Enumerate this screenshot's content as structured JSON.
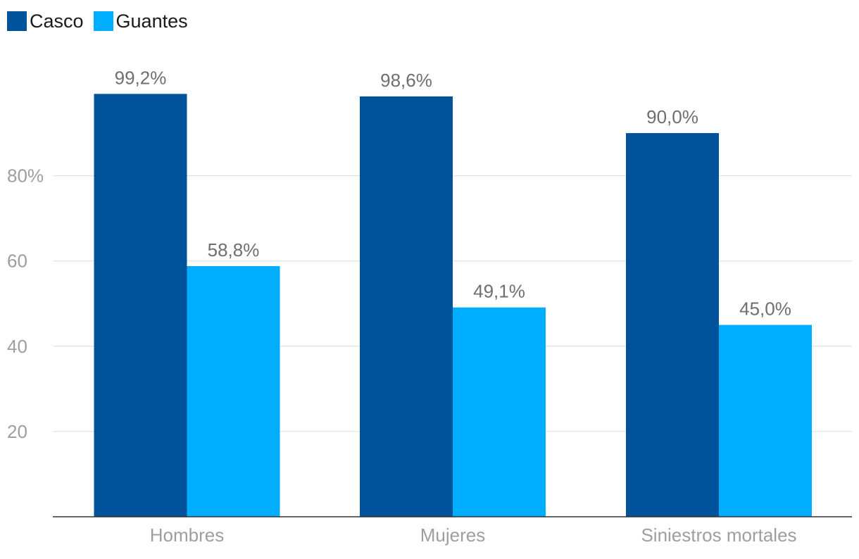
{
  "chart_data": {
    "type": "bar",
    "categories": [
      "Hombres",
      "Mujeres",
      "Siniestros mortales"
    ],
    "series": [
      {
        "name": "Casco",
        "values": [
          99.2,
          98.6,
          90.0
        ],
        "labels": [
          "99,2%",
          "98,6%",
          "90,0%"
        ],
        "color": "#00529b"
      },
      {
        "name": "Guantes",
        "values": [
          58.8,
          49.1,
          45.0
        ],
        "labels": [
          "58,8%",
          "49,1%",
          "45,0%"
        ],
        "color": "#00adff"
      }
    ],
    "y_ticks": [
      {
        "value": 20,
        "label": "20"
      },
      {
        "value": 40,
        "label": "40"
      },
      {
        "value": 60,
        "label": "60"
      },
      {
        "value": 80,
        "label": "80%"
      }
    ],
    "ylim": [
      0,
      100
    ],
    "grid": true,
    "legend_position": "top-left"
  }
}
